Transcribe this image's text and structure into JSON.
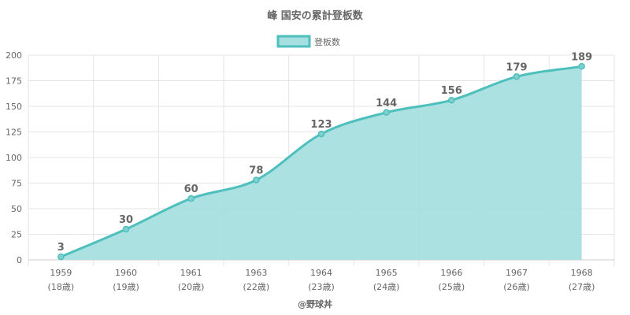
{
  "chart_data": {
    "type": "area",
    "title": "峰 国安の累計登板数",
    "categories": [
      "1959",
      "1960",
      "1961",
      "1963",
      "1964",
      "1965",
      "1966",
      "1967",
      "1968"
    ],
    "category_sublabels": [
      "(18歳)",
      "(19歳)",
      "(20歳)",
      "(22歳)",
      "(23歳)",
      "(24歳)",
      "(25歳)",
      "(26歳)",
      "(27歳)"
    ],
    "series": [
      {
        "name": "登板数",
        "values": [
          3,
          30,
          60,
          78,
          123,
          144,
          156,
          179,
          189
        ]
      }
    ],
    "ylim": [
      0,
      200
    ],
    "yticks": [
      0,
      25,
      50,
      75,
      100,
      125,
      150,
      175,
      200
    ],
    "grid": true,
    "legend": "top-center",
    "colors": {
      "line": "#4dbfbc",
      "fill": "#a6dfdf"
    }
  },
  "credit": "@野球丼"
}
